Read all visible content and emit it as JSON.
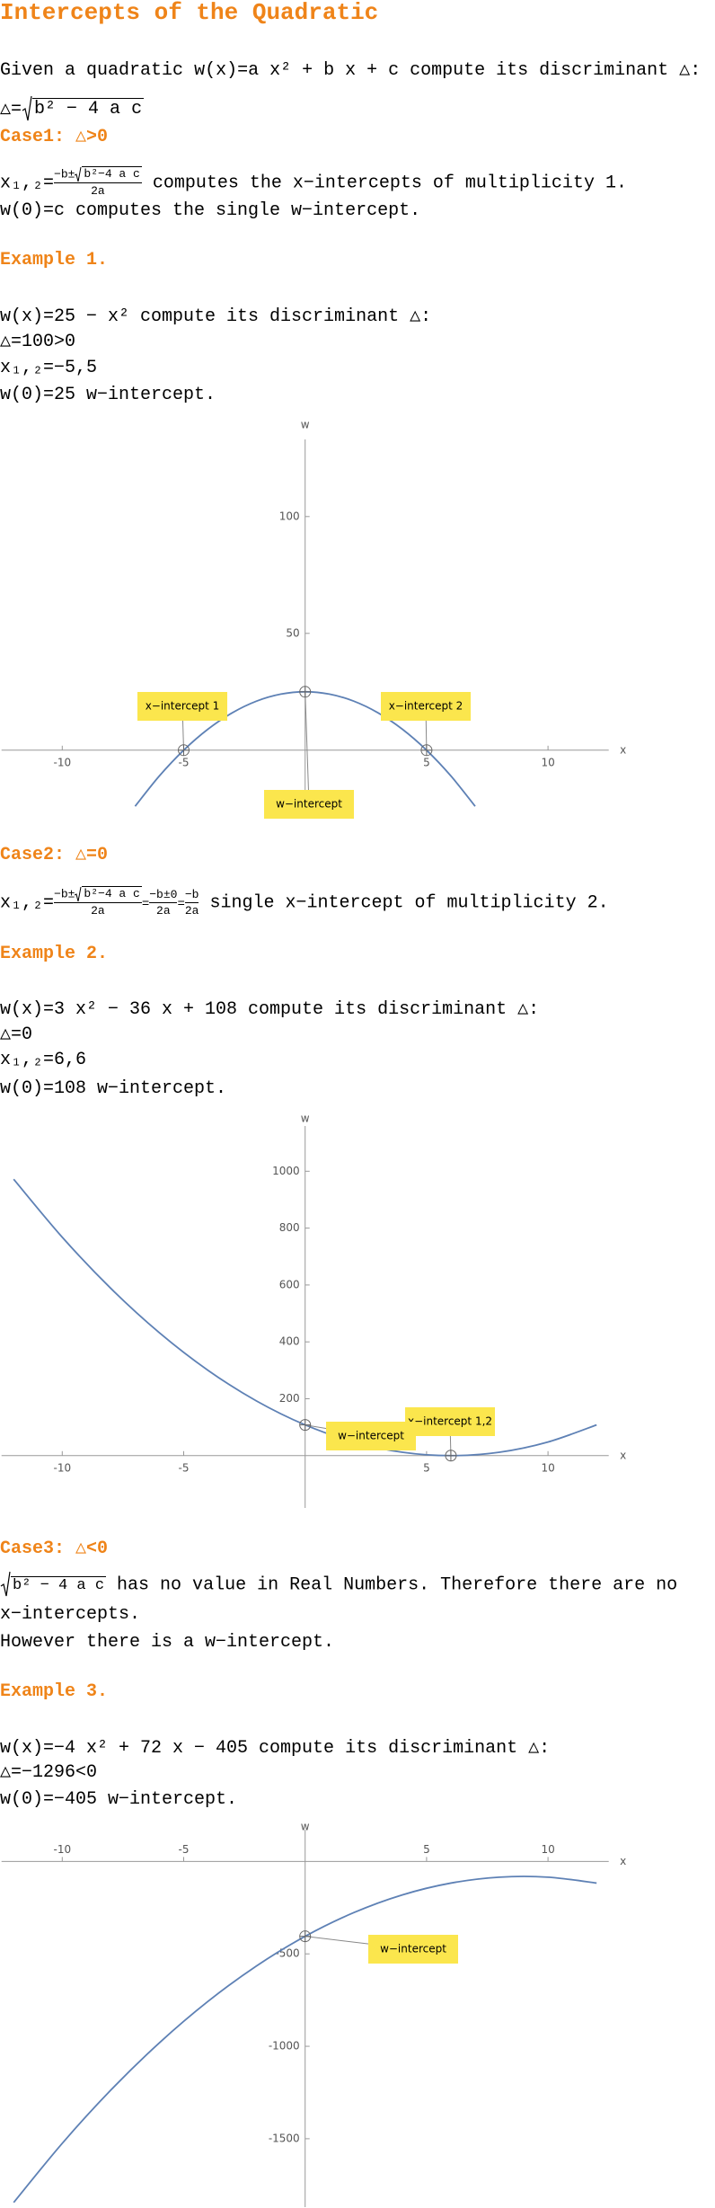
{
  "title": "Intercepts of the Quadratic",
  "intro": {
    "lead": "Given a quadratic",
    "formula": "w(x)=a x² + b x + c",
    "tail": "compute its discriminant △:"
  },
  "discriminant": {
    "lhs": "△=",
    "radicand": "b² − 4 a c"
  },
  "case1": {
    "heading": "Case1: △>0",
    "lhs": "x₁,₂=",
    "num": "−b±",
    "radicand": "b²−4 a c",
    "den": "2a",
    "text": "computes the x−intercepts of multiplicity 1.",
    "line2": "w(0)=c computes the single w−intercept."
  },
  "example1": {
    "heading": "Example 1.",
    "lines": [
      "w(x)=25 − x² compute its discriminant △:",
      "△=100>0",
      "x₁,₂=−5,5",
      "w(0)=25  w−intercept."
    ]
  },
  "case2": {
    "heading": "Case2: △=0",
    "lhs": "x₁,₂=",
    "num": "−b±",
    "radicand": "b²−4 a c",
    "den": "2a",
    "eq": "=",
    "num2": "−b±0",
    "num3": "−b",
    "text": "single x−intercept of multiplicity 2."
  },
  "example2": {
    "heading": "Example 2.",
    "lines": [
      "w(x)=3 x² − 36 x + 108 compute its discriminant △:",
      "△=0",
      "x₁,₂=6,6",
      "w(0)=108  w−intercept."
    ]
  },
  "case3": {
    "heading": "Case3: △<0",
    "radicand": "b² − 4 a c",
    "text": "has no value in Real Numbers. Therefore there are no x−intercepts.",
    "line2": "However there is a w−intercept."
  },
  "example3": {
    "heading": "Example 3.",
    "lines": [
      "w(x)=−4 x² + 72 x − 405 compute its discriminant △:",
      "△=−1296<0",
      "w(0)=−405 w−intercept."
    ]
  },
  "chart_data": [
    {
      "type": "line",
      "xlabel": "x",
      "ylabel": "w",
      "color": "#5e81b5",
      "x": [
        -7,
        -6,
        -5,
        -4,
        -3,
        -2,
        -1,
        0,
        1,
        2,
        3,
        4,
        5,
        6,
        7
      ],
      "values": [
        -24,
        -11,
        0,
        9,
        16,
        21,
        24,
        25,
        24,
        21,
        16,
        9,
        0,
        -11,
        -24
      ],
      "xlim": [
        -12.5,
        12.5
      ],
      "ylim": [
        -27,
        133
      ],
      "xticks": [
        -10,
        -5,
        5,
        10
      ],
      "yticks": [
        50,
        100
      ],
      "points": [
        {
          "label": "x−intercept 1",
          "x": -5,
          "y": 0
        },
        {
          "label": "x−intercept 2",
          "x": 5,
          "y": 0
        },
        {
          "label": "w−intercept",
          "x": 0,
          "y": 25
        }
      ]
    },
    {
      "type": "line",
      "xlabel": "x",
      "ylabel": "w",
      "color": "#5e81b5",
      "x": [
        -12,
        -10,
        -8,
        -6,
        -4,
        -2,
        0,
        2,
        4,
        6,
        8,
        10,
        12
      ],
      "values": [
        972,
        768,
        588,
        432,
        300,
        192,
        108,
        48,
        12,
        0,
        12,
        48,
        108
      ],
      "xlim": [
        -12.5,
        12.5
      ],
      "ylim": [
        -184,
        1159
      ],
      "xticks": [
        -10,
        -5,
        5,
        10
      ],
      "yticks": [
        200,
        400,
        600,
        800,
        1000
      ],
      "points": [
        {
          "label": "x−intercept 1,2",
          "x": 6,
          "y": 0
        },
        {
          "label": "w−intercept",
          "x": 0,
          "y": 108
        }
      ]
    },
    {
      "type": "line",
      "xlabel": "x",
      "ylabel": "w",
      "color": "#5e81b5",
      "x": [
        -12,
        -10,
        -8,
        -6,
        -4,
        -2,
        0,
        2,
        4,
        6,
        8,
        10,
        12
      ],
      "values": [
        -1845,
        -1525,
        -1237,
        -981,
        -757,
        -565,
        -405,
        -277,
        -181,
        -117,
        -85,
        -85,
        -117
      ],
      "xlim": [
        -12.5,
        12.5
      ],
      "ylim": [
        -1870,
        172
      ],
      "xticks": [
        -10,
        -5,
        5,
        10
      ],
      "yticks": [
        -500,
        -1000,
        -1500
      ],
      "points": [
        {
          "label": "w−intercept",
          "x": 0,
          "y": -405
        }
      ]
    }
  ]
}
